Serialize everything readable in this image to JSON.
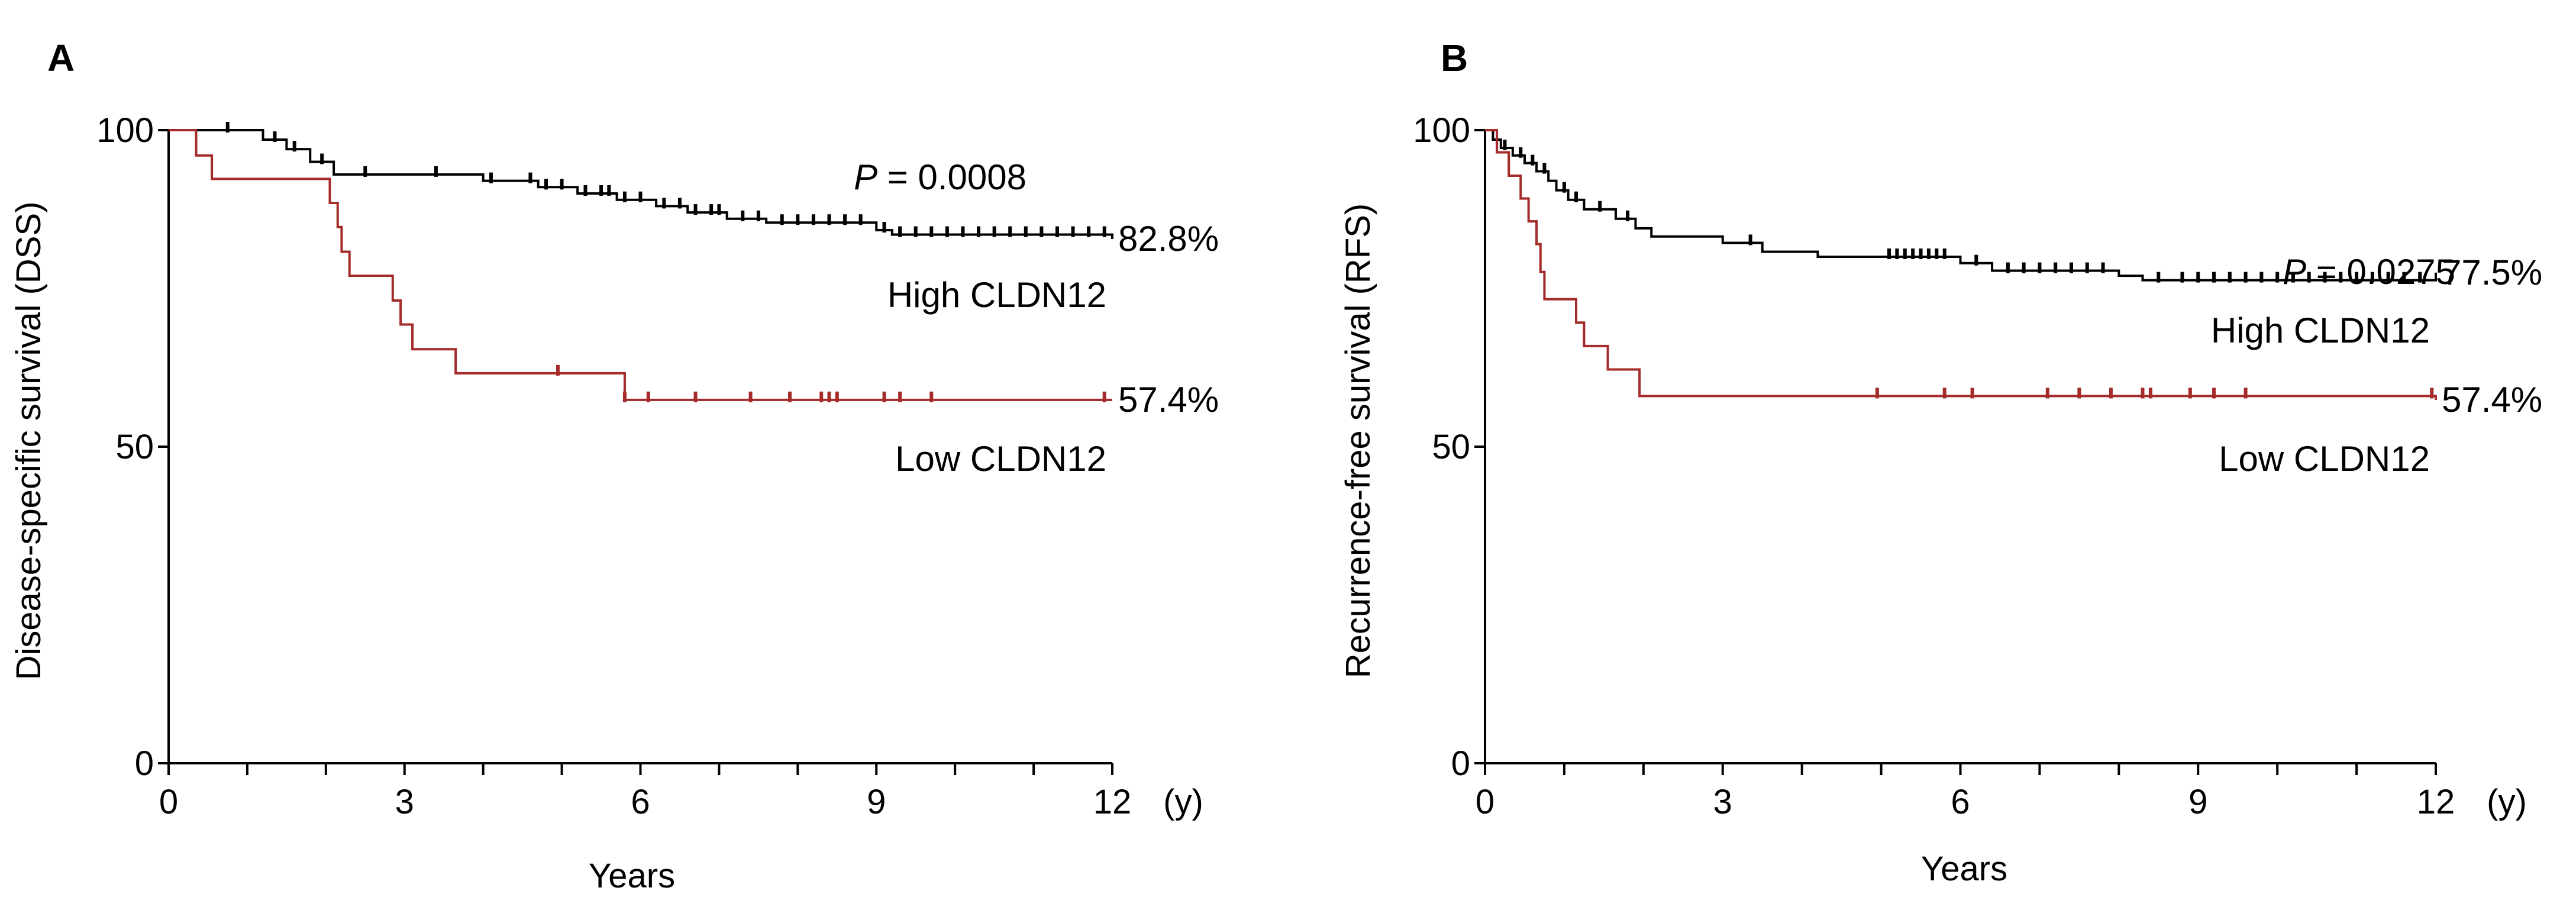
{
  "chart_data": [
    {
      "type": "line",
      "panel_label": "A",
      "ylabel": "Disease-specific survival (DSS)",
      "xlabel": "Years",
      "x_unit": "(y)",
      "xlim": [
        0,
        12
      ],
      "ylim": [
        0,
        100
      ],
      "xticks": [
        "0",
        "3",
        "6",
        "9",
        "12"
      ],
      "yticks": [
        "0",
        "50",
        "100"
      ],
      "p_label": "P",
      "p_value": "= 0.0008",
      "series": [
        {
          "name": "High CLDN12",
          "color": "#000000",
          "end_label": "82.8%",
          "steps": [
            [
              0,
              100
            ],
            [
              0.8,
              100
            ],
            [
              1.2,
              98.5
            ],
            [
              1.5,
              97
            ],
            [
              1.8,
              95
            ],
            [
              2.1,
              93
            ],
            [
              4.0,
              92
            ],
            [
              4.7,
              91
            ],
            [
              5.2,
              90
            ],
            [
              5.7,
              89
            ],
            [
              6.2,
              88
            ],
            [
              6.6,
              87
            ],
            [
              7.1,
              86
            ],
            [
              7.6,
              85.4
            ],
            [
              9.0,
              84.2
            ],
            [
              9.2,
              83.5
            ],
            [
              12,
              82.8
            ]
          ],
          "censor_x": [
            0.75,
            1.35,
            1.6,
            1.95,
            2.5,
            3.4,
            4.1,
            4.6,
            4.8,
            5.0,
            5.3,
            5.5,
            5.6,
            5.8,
            6.0,
            6.3,
            6.5,
            6.7,
            6.9,
            7.0,
            7.3,
            7.5,
            7.8,
            8.0,
            8.2,
            8.4,
            8.6,
            8.8,
            9.1,
            9.3,
            9.5,
            9.7,
            9.9,
            10.1,
            10.3,
            10.5,
            10.7,
            10.9,
            11.1,
            11.3,
            11.5,
            11.7,
            11.9
          ]
        },
        {
          "name": "Low CLDN12",
          "color": "#a52a2a",
          "end_label": "57.4%",
          "steps": [
            [
              0,
              100
            ],
            [
              0.35,
              96
            ],
            [
              0.55,
              92.3
            ],
            [
              2.05,
              88.5
            ],
            [
              2.15,
              84.7
            ],
            [
              2.2,
              80.8
            ],
            [
              2.3,
              77
            ],
            [
              2.85,
              73.1
            ],
            [
              2.95,
              69.3
            ],
            [
              3.1,
              65.4
            ],
            [
              3.65,
              61.6
            ],
            [
              5.8,
              57.4
            ],
            [
              12,
              57.4
            ]
          ],
          "censor_x": [
            4.95,
            5.8,
            6.1,
            6.7,
            7.4,
            7.9,
            8.3,
            8.4,
            8.5,
            9.1,
            9.3,
            9.7,
            11.9
          ]
        }
      ]
    },
    {
      "type": "line",
      "panel_label": "B",
      "ylabel": "Recurrence-free survival (RFS)",
      "xlabel": "Years",
      "x_unit": "(y)",
      "xlim": [
        0,
        12
      ],
      "ylim": [
        0,
        100
      ],
      "xticks": [
        "0",
        "3",
        "6",
        "9",
        "12"
      ],
      "yticks": [
        "0",
        "50",
        "100"
      ],
      "p_label": "P",
      "p_value": "= 0.0275",
      "series": [
        {
          "name": "High CLDN12",
          "color": "#000000",
          "end_label": "77.5%",
          "steps": [
            [
              0,
              100
            ],
            [
              0.1,
              98.5
            ],
            [
              0.2,
              97.2
            ],
            [
              0.35,
              96
            ],
            [
              0.5,
              94.8
            ],
            [
              0.65,
              93.5
            ],
            [
              0.8,
              92
            ],
            [
              0.9,
              90.5
            ],
            [
              1.05,
              89
            ],
            [
              1.25,
              87.5
            ],
            [
              1.65,
              86
            ],
            [
              1.9,
              84.5
            ],
            [
              2.1,
              83.2
            ],
            [
              3.0,
              82.2
            ],
            [
              3.5,
              80.8
            ],
            [
              4.2,
              80
            ],
            [
              6.0,
              79
            ],
            [
              6.4,
              77.8
            ],
            [
              8.0,
              77
            ],
            [
              8.3,
              76.3
            ],
            [
              12,
              77.5
            ]
          ],
          "censor_x": [
            0.25,
            0.45,
            0.6,
            0.75,
            1.0,
            1.15,
            1.45,
            1.8,
            3.35,
            5.1,
            5.2,
            5.3,
            5.4,
            5.5,
            5.6,
            5.7,
            5.8,
            6.2,
            6.6,
            6.8,
            7.0,
            7.2,
            7.4,
            7.6,
            7.8,
            8.5,
            8.8,
            9.0,
            9.2,
            9.4,
            9.6,
            9.8,
            10.0,
            10.2,
            10.4,
            10.6,
            10.8,
            11.0,
            11.2,
            11.4,
            11.6,
            11.8
          ]
        },
        {
          "name": "Low CLDN12",
          "color": "#a52a2a",
          "end_label": "57.4%",
          "steps": [
            [
              0,
              100
            ],
            [
              0.15,
              96.5
            ],
            [
              0.3,
              92.8
            ],
            [
              0.45,
              89.2
            ],
            [
              0.55,
              85.6
            ],
            [
              0.65,
              82
            ],
            [
              0.7,
              77.6
            ],
            [
              0.75,
              73.3
            ],
            [
              1.15,
              69.6
            ],
            [
              1.25,
              65.9
            ],
            [
              1.55,
              62.2
            ],
            [
              1.95,
              58.0
            ],
            [
              12,
              57.4
            ]
          ],
          "censor_x": [
            4.95,
            5.8,
            6.15,
            7.1,
            7.5,
            7.9,
            8.3,
            8.4,
            8.9,
            9.2,
            9.6,
            11.95
          ]
        }
      ]
    }
  ]
}
